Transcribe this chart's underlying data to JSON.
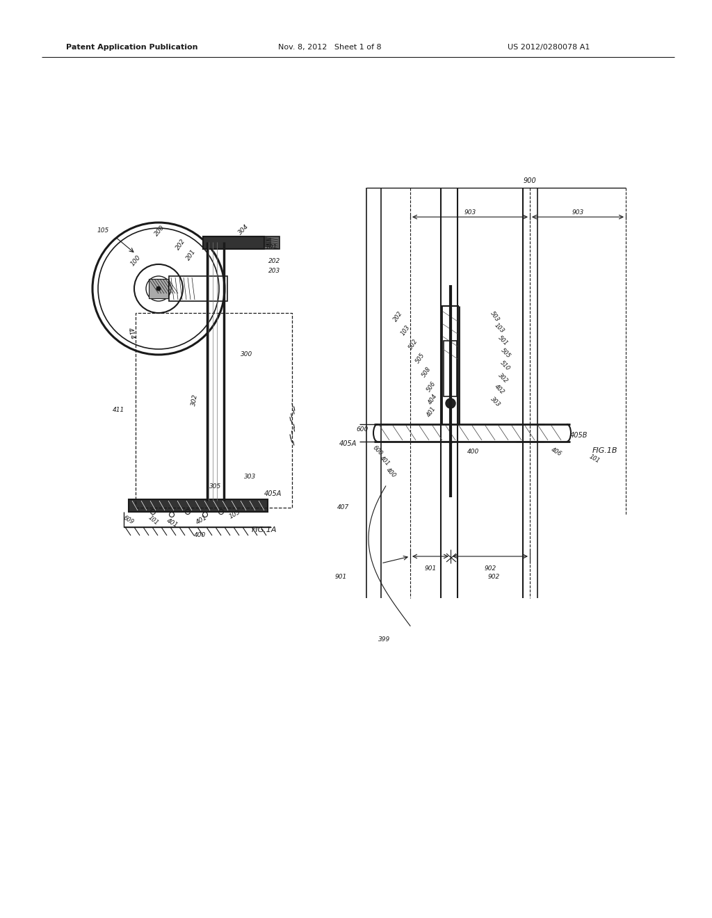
{
  "bg_color": "#ffffff",
  "line_color": "#1a1a1a",
  "header_left": "Patent Application Publication",
  "header_mid": "Nov. 8, 2012   Sheet 1 of 8",
  "header_right": "US 2012/0280078 A1",
  "fig1a_label": "FIG.1A",
  "fig1b_label": "FIG.1B",
  "fig1a_405a": "405A",
  "fig1b_405b": "405B"
}
